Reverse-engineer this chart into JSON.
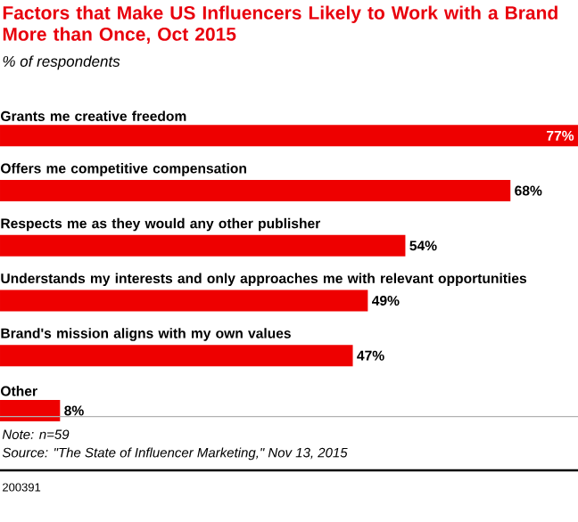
{
  "chart_data": {
    "type": "bar",
    "orientation": "horizontal",
    "title": "Factors that Make US Influencers Likely to Work with a Brand More than Once, Oct 2015",
    "subtitle": "% of respondents",
    "categories": [
      "Grants me creative freedom",
      "Offers me competitive compensation",
      "Respects me as they would any other publisher",
      "Understands my interests and only approaches me with relevant opportunities",
      "Brand's mission aligns with my own values",
      "Other"
    ],
    "values": [
      77,
      68,
      54,
      49,
      47,
      8
    ],
    "value_labels": [
      "77%",
      "68%",
      "54%",
      "49%",
      "47%",
      "8%"
    ],
    "color": "#ee0000",
    "annotations": [
      "Note: n=59",
      "Source: \"The State of Influencer Marketing,\" Nov 13, 2015",
      "200391"
    ]
  }
}
